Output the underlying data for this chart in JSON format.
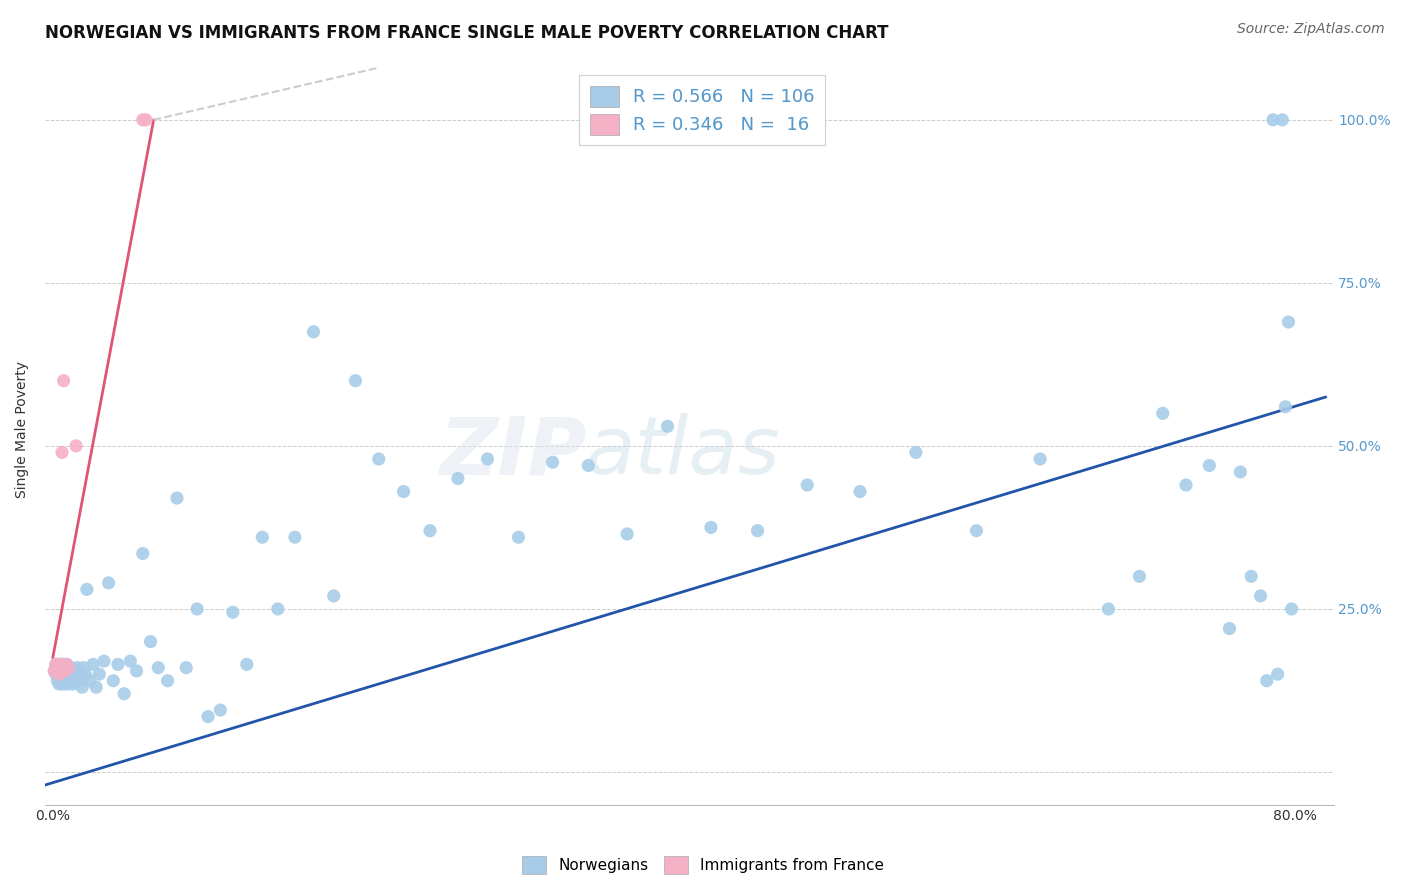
{
  "title": "NORWEGIAN VS IMMIGRANTS FROM FRANCE SINGLE MALE POVERTY CORRELATION CHART",
  "source": "Source: ZipAtlas.com",
  "ylabel": "Single Male Poverty",
  "watermark_zip": "ZIP",
  "watermark_atlas": "atlas",
  "norwegian_color": "#a8cce8",
  "france_color": "#f4b0c4",
  "norway_trendline_color": "#2255aa",
  "france_trendline_color": "#e05575",
  "france_trendline_dashed_color": "#cccccc",
  "background_color": "#ffffff",
  "grid_color": "#cccccc",
  "tick_color_right": "#5599cc",
  "title_fontsize": 12,
  "axis_label_fontsize": 10,
  "tick_fontsize": 10,
  "source_fontsize": 10,
  "xlim": [
    -0.005,
    0.825
  ],
  "ylim": [
    -0.05,
    1.1
  ],
  "norway_trend_x0": -0.005,
  "norway_trend_y0": -0.02,
  "norway_trend_x1": 0.82,
  "norway_trend_y1": 0.575,
  "france_trend_solid_x0": 0.0,
  "france_trend_solid_y0": 0.175,
  "france_trend_solid_x1": 0.065,
  "france_trend_solid_y1": 1.0,
  "france_trend_dash_x0": 0.065,
  "france_trend_dash_y0": 1.0,
  "france_trend_dash_x1": 0.21,
  "france_trend_dash_y1": 1.08,
  "norway_x": [
    0.001,
    0.002,
    0.002,
    0.003,
    0.003,
    0.003,
    0.004,
    0.004,
    0.004,
    0.005,
    0.005,
    0.005,
    0.005,
    0.006,
    0.006,
    0.006,
    0.006,
    0.007,
    0.007,
    0.007,
    0.007,
    0.008,
    0.008,
    0.008,
    0.009,
    0.009,
    0.009,
    0.01,
    0.01,
    0.01,
    0.011,
    0.011,
    0.012,
    0.012,
    0.013,
    0.013,
    0.014,
    0.015,
    0.016,
    0.017,
    0.018,
    0.019,
    0.02,
    0.021,
    0.022,
    0.024,
    0.026,
    0.028,
    0.03,
    0.033,
    0.036,
    0.039,
    0.042,
    0.046,
    0.05,
    0.054,
    0.058,
    0.063,
    0.068,
    0.074,
    0.08,
    0.086,
    0.093,
    0.1,
    0.108,
    0.116,
    0.125,
    0.135,
    0.145,
    0.156,
    0.168,
    0.181,
    0.195,
    0.21,
    0.226,
    0.243,
    0.261,
    0.28,
    0.3,
    0.322,
    0.345,
    0.37,
    0.396,
    0.424,
    0.454,
    0.486,
    0.52,
    0.556,
    0.595,
    0.636,
    0.68,
    0.7,
    0.715,
    0.73,
    0.745,
    0.758,
    0.765,
    0.772,
    0.778,
    0.782,
    0.786,
    0.789,
    0.792,
    0.794,
    0.796,
    0.798
  ],
  "norway_y": [
    0.155,
    0.15,
    0.165,
    0.14,
    0.155,
    0.165,
    0.135,
    0.155,
    0.165,
    0.15,
    0.14,
    0.16,
    0.165,
    0.135,
    0.15,
    0.16,
    0.165,
    0.14,
    0.15,
    0.16,
    0.165,
    0.135,
    0.15,
    0.165,
    0.14,
    0.155,
    0.165,
    0.135,
    0.15,
    0.16,
    0.14,
    0.16,
    0.14,
    0.16,
    0.135,
    0.155,
    0.15,
    0.14,
    0.16,
    0.15,
    0.14,
    0.13,
    0.16,
    0.15,
    0.28,
    0.14,
    0.165,
    0.13,
    0.15,
    0.17,
    0.29,
    0.14,
    0.165,
    0.12,
    0.17,
    0.155,
    0.335,
    0.2,
    0.16,
    0.14,
    0.42,
    0.16,
    0.25,
    0.085,
    0.095,
    0.245,
    0.165,
    0.36,
    0.25,
    0.36,
    0.675,
    0.27,
    0.6,
    0.48,
    0.43,
    0.37,
    0.45,
    0.48,
    0.36,
    0.475,
    0.47,
    0.365,
    0.53,
    0.375,
    0.37,
    0.44,
    0.43,
    0.49,
    0.37,
    0.48,
    0.25,
    0.3,
    0.55,
    0.44,
    0.47,
    0.22,
    0.46,
    0.3,
    0.27,
    0.14,
    1.0,
    0.15,
    1.0,
    0.56,
    0.69,
    0.25
  ],
  "france_x": [
    0.001,
    0.002,
    0.002,
    0.003,
    0.004,
    0.004,
    0.005,
    0.005,
    0.006,
    0.007,
    0.008,
    0.009,
    0.01,
    0.015,
    0.058,
    0.06
  ],
  "france_y": [
    0.155,
    0.155,
    0.165,
    0.16,
    0.15,
    0.165,
    0.155,
    0.165,
    0.49,
    0.6,
    0.155,
    0.165,
    0.16,
    0.5,
    1.0,
    1.0
  ]
}
